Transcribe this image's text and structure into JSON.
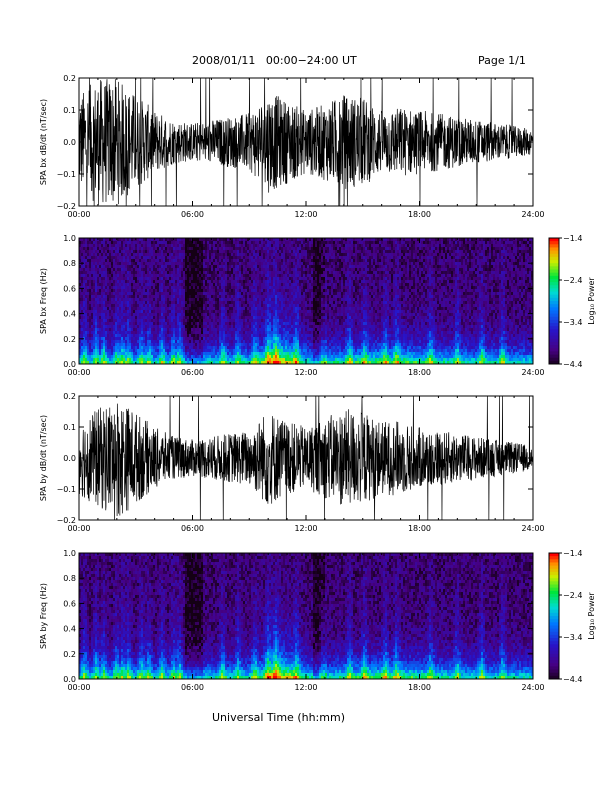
{
  "header": {
    "title": "2008/01/11   00:00−24:00 UT",
    "page": "Page 1/1"
  },
  "xaxis_title": "Universal Time (hh:mm)",
  "colors": {
    "trace": "#000000",
    "panel_bg": "#ffffff"
  },
  "chart_data": [
    {
      "type": "line",
      "ylabel": "SPA bx dB/dt (nT/sec)",
      "x_ticks": [
        "00:00",
        "06:00",
        "12:00",
        "18:00",
        "24:00"
      ],
      "y_ticks": [
        "0.2",
        "0.1",
        "0.0",
        "−0.1",
        "−0.2"
      ],
      "ylim": [
        -0.2,
        0.2
      ],
      "xlim_hours": [
        0,
        24
      ],
      "grid": false,
      "series": [
        {
          "values_envelope_hours": [
            0,
            1,
            2,
            3,
            4,
            5,
            6,
            7,
            8,
            9,
            10,
            11,
            12,
            13,
            14,
            15,
            16,
            17,
            18,
            19,
            20,
            21,
            22,
            23,
            24
          ],
          "amplitude": [
            0.15,
            0.2,
            0.2,
            0.15,
            0.1,
            0.07,
            0.06,
            0.07,
            0.08,
            0.09,
            0.16,
            0.13,
            0.1,
            0.12,
            0.15,
            0.14,
            0.1,
            0.11,
            0.1,
            0.09,
            0.08,
            0.07,
            0.06,
            0.05,
            0.04
          ]
        }
      ]
    },
    {
      "type": "heatmap",
      "ylabel": "SPA bx Freq (Hz)",
      "x_ticks": [
        "00:00",
        "06:00",
        "12:00",
        "18:00",
        "24:00"
      ],
      "y_ticks": [
        "1.0",
        "0.8",
        "0.6",
        "0.4",
        "0.2",
        "0.0"
      ],
      "ylim": [
        0,
        1.0
      ],
      "xlim_hours": [
        0,
        24
      ],
      "colorbar": {
        "label": "Log₁₀ Power",
        "ticks": [
          "−1.4",
          "−2.4",
          "−3.4",
          "−4.4"
        ],
        "range": [
          -4.4,
          -1.4
        ]
      }
    },
    {
      "type": "line",
      "ylabel": "SPA by dB/dt (nT/sec)",
      "x_ticks": [
        "00:00",
        "06:00",
        "12:00",
        "18:00",
        "24:00"
      ],
      "y_ticks": [
        "0.2",
        "0.1",
        "0.0",
        "−0.1",
        "−0.2"
      ],
      "ylim": [
        -0.2,
        0.2
      ],
      "xlim_hours": [
        0,
        24
      ],
      "grid": false,
      "series": [
        {
          "values_envelope_hours": [
            0,
            1,
            2,
            3,
            4,
            5,
            6,
            7,
            8,
            9,
            10,
            11,
            12,
            13,
            14,
            15,
            16,
            17,
            18,
            19,
            20,
            21,
            22,
            23,
            24
          ],
          "amplitude": [
            0.12,
            0.16,
            0.2,
            0.15,
            0.1,
            0.07,
            0.06,
            0.07,
            0.08,
            0.09,
            0.16,
            0.12,
            0.1,
            0.13,
            0.16,
            0.15,
            0.12,
            0.12,
            0.1,
            0.09,
            0.08,
            0.07,
            0.06,
            0.05,
            0.04
          ]
        }
      ]
    },
    {
      "type": "heatmap",
      "ylabel": "SPA by Freq (Hz)",
      "x_ticks": [
        "00:00",
        "06:00",
        "12:00",
        "18:00",
        "24:00"
      ],
      "y_ticks": [
        "1.0",
        "0.8",
        "0.6",
        "0.4",
        "0.2",
        "0.0"
      ],
      "ylim": [
        0,
        1.0
      ],
      "xlim_hours": [
        0,
        24
      ],
      "colorbar": {
        "label": "Log₁₀ Power",
        "ticks": [
          "−1.4",
          "−2.4",
          "−3.4",
          "−4.4"
        ],
        "range": [
          -4.4,
          -1.4
        ]
      }
    }
  ]
}
